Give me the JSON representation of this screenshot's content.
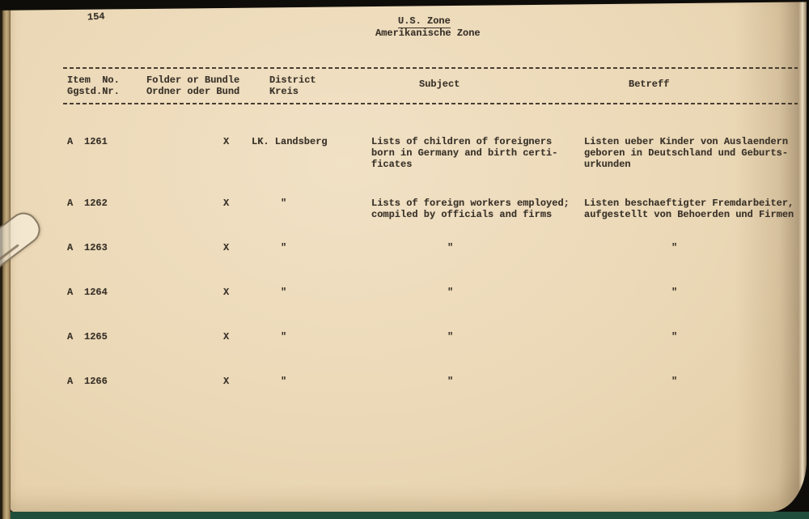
{
  "page": {
    "page_number": "154",
    "title": "U.S. Zone",
    "subtitle": "Amerikanische Zone"
  },
  "table": {
    "headers": {
      "item_no_en": "Item  No.",
      "item_no_de": "Ggstd.Nr.",
      "folder_en": "Folder or Bundle",
      "folder_de": "Ordner oder Bund",
      "district_en": "District",
      "district_de": "Kreis",
      "subject": "Subject",
      "betreff": "Betreff"
    },
    "ditto_mark": "\"",
    "rows": [
      {
        "series": "A",
        "item_no": "1261",
        "folder": "X",
        "district": "LK. Landsberg",
        "subject_lines": [
          "Lists of children of foreigners",
          "born in Germany and birth certi-",
          "ficates"
        ],
        "betreff_lines": [
          "Listen ueber Kinder von Auslaendern",
          "geboren in Deutschland und Geburts-",
          "urkunden"
        ]
      },
      {
        "series": "A",
        "item_no": "1262",
        "folder": "X",
        "district": "\"",
        "subject_lines": [
          "Lists of foreign workers employed;",
          "compiled by officials and firms"
        ],
        "betreff_lines": [
          "Listen beschaeftigter Fremdarbeiter,",
          "aufgestellt von Behoerden und Firmen"
        ]
      },
      {
        "series": "A",
        "item_no": "1263",
        "folder": "X",
        "district": "\"",
        "subject_lines": [
          "\""
        ],
        "betreff_lines": [
          "\""
        ]
      },
      {
        "series": "A",
        "item_no": "1264",
        "folder": "X",
        "district": "\"",
        "subject_lines": [
          "\""
        ],
        "betreff_lines": [
          "\""
        ]
      },
      {
        "series": "A",
        "item_no": "1265",
        "folder": "X",
        "district": "\"",
        "subject_lines": [
          "\""
        ],
        "betreff_lines": [
          "\""
        ]
      },
      {
        "series": "A",
        "item_no": "1266",
        "folder": "X",
        "district": "\"",
        "subject_lines": [
          "\""
        ],
        "betreff_lines": [
          "\""
        ]
      }
    ]
  },
  "colors": {
    "paper": "#ecd9b8",
    "ink": "#3a332a",
    "binding_tan": "#bba275",
    "backdrop_dark": "#0f0d09",
    "backdrop_teal": "#1f4e3d"
  }
}
